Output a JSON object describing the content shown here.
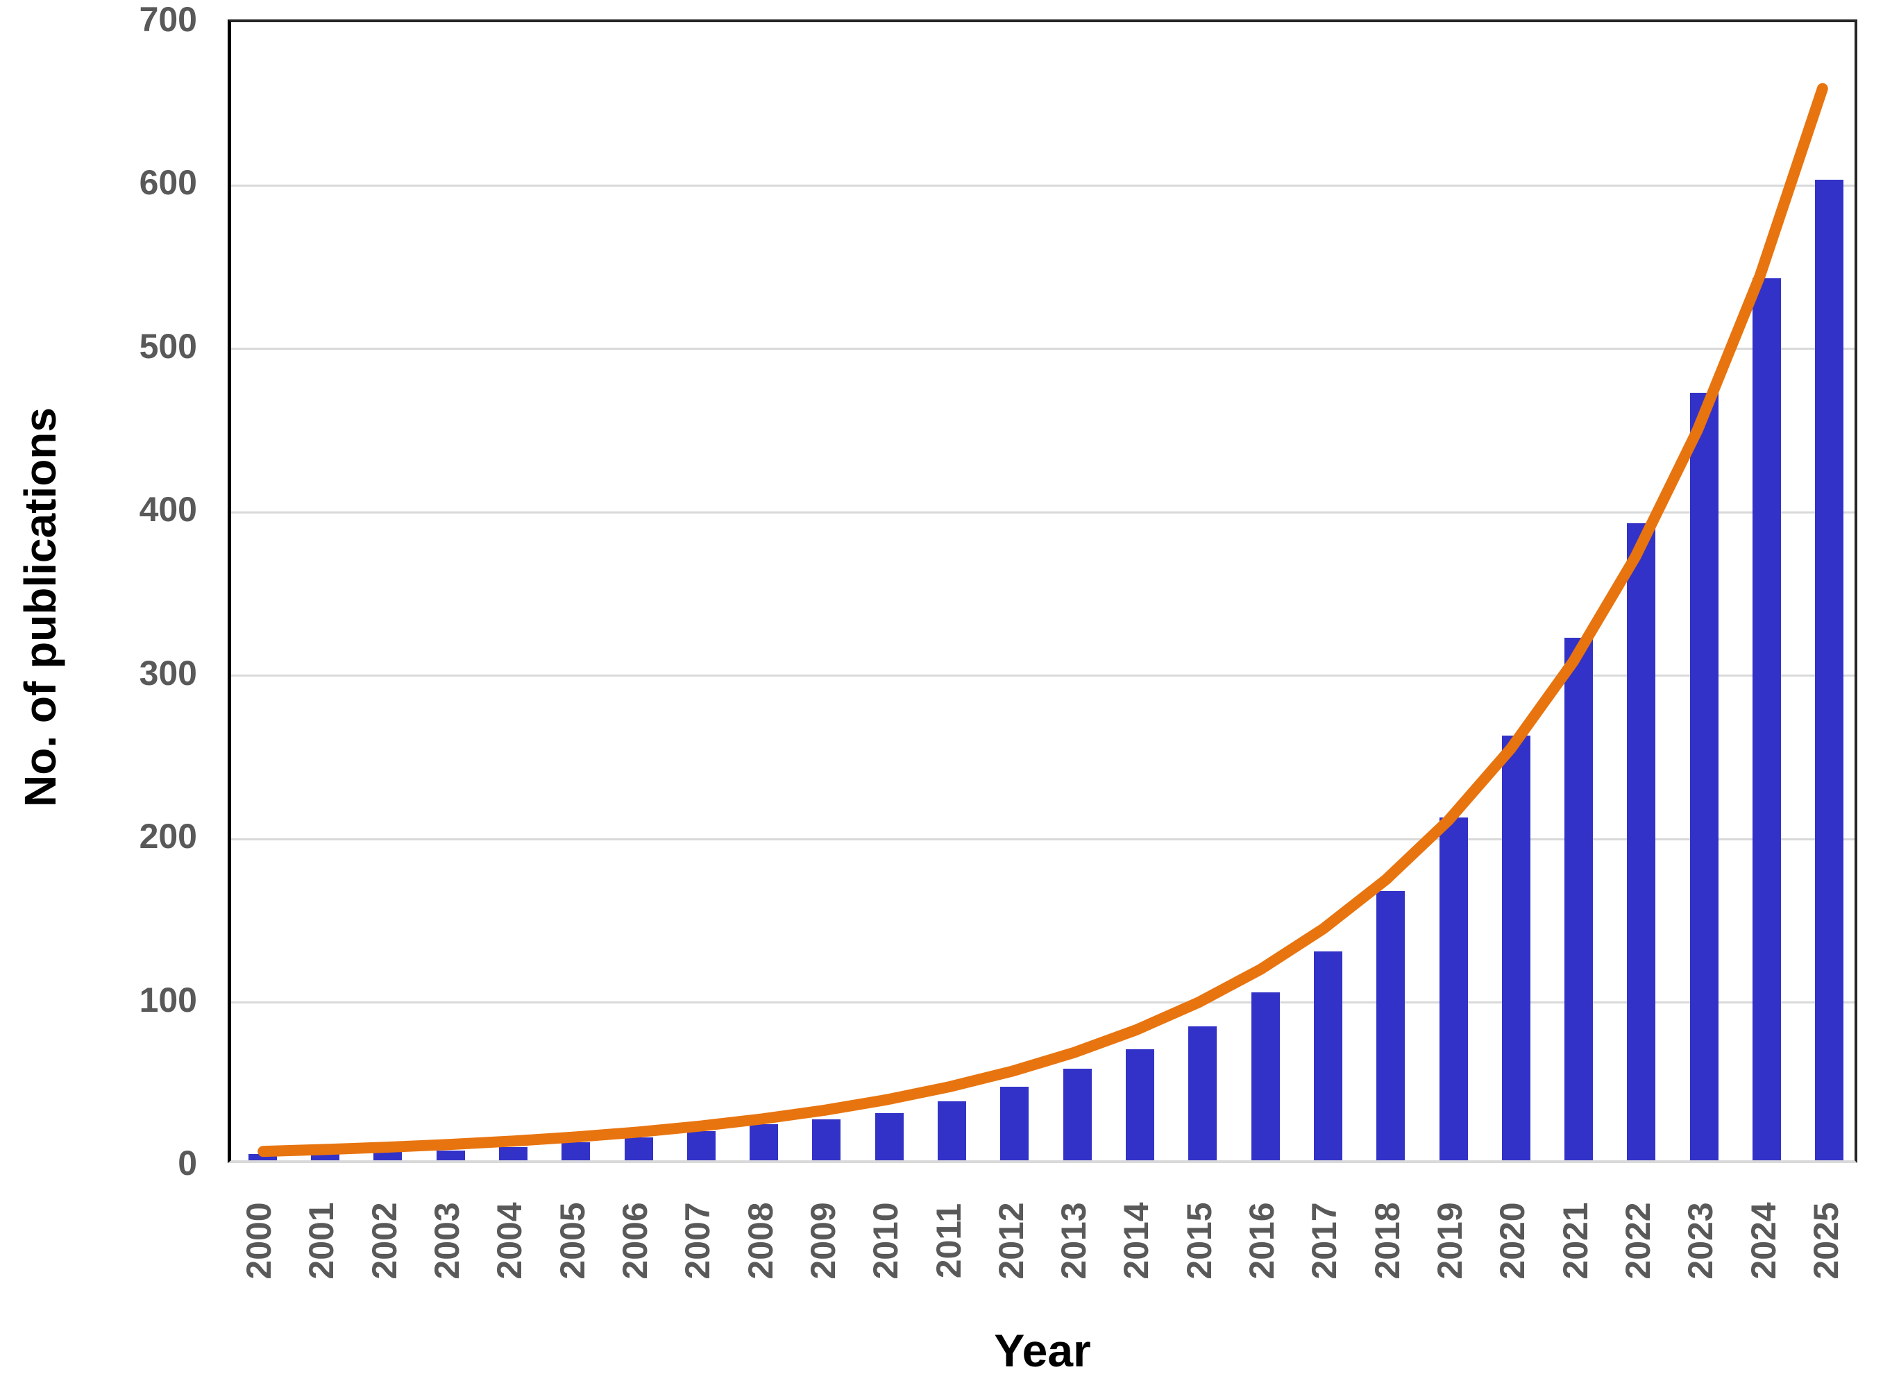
{
  "chart_data": {
    "type": "bar",
    "title": "",
    "xlabel": "Year",
    "ylabel": "No. of publications",
    "categories": [
      "2000",
      "2001",
      "2002",
      "2003",
      "2004",
      "2005",
      "2006",
      "2007",
      "2008",
      "2009",
      "2010",
      "2011",
      "2012",
      "2013",
      "2014",
      "2015",
      "2016",
      "2017",
      "2018",
      "2019",
      "2020",
      "2021",
      "2022",
      "2023",
      "2024",
      "2025"
    ],
    "series": [
      {
        "name": "No. of publications",
        "values": [
          4,
          4,
          5,
          6,
          8,
          11,
          14,
          18,
          22,
          25,
          29,
          36,
          45,
          56,
          68,
          82,
          103,
          128,
          165,
          210,
          260,
          320,
          390,
          470,
          540,
          600
        ]
      }
    ],
    "trendline": {
      "type": "exponential",
      "start_value": 5.5,
      "growth_per_year": 1.211,
      "end_value": 657
    },
    "ylim": [
      0,
      700
    ],
    "yticks": [
      0,
      100,
      200,
      300,
      400,
      500,
      600,
      700
    ],
    "grid": true,
    "legend_position": "none"
  },
  "style": {
    "bar_color": "#3232C8",
    "trend_color": "#E8740F",
    "grid_color": "#D9D9D9",
    "baseline_color": "#D9D9D9",
    "frame_color": "#262626",
    "yaxis_line_color": "#000000",
    "tick_label_color": "#595959",
    "axis_title_color": "#000000",
    "background_color": "#FFFFFF"
  }
}
